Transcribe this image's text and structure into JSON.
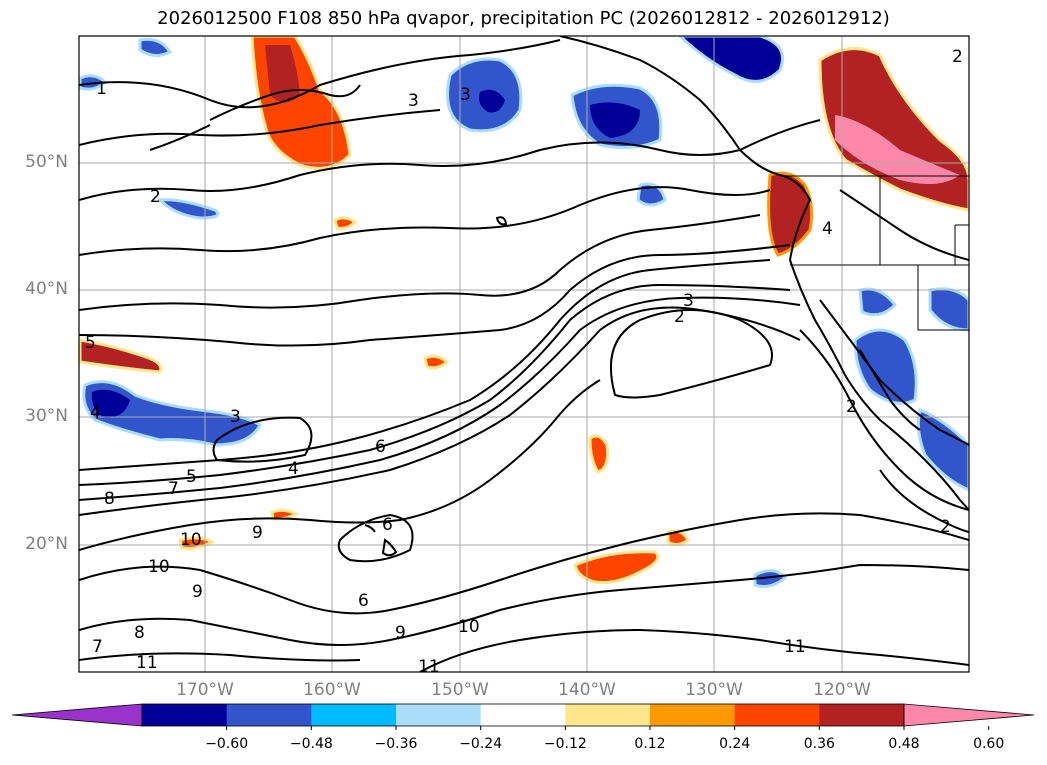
{
  "title": "2026012500 F108 850 hPa qvapor, precipitation PC (2026012812 - 2026012912)",
  "lat_labels": [
    "50°N",
    "40°N",
    "30°N",
    "20°N"
  ],
  "lon_labels": [
    "170°W",
    "160°W",
    "150°W",
    "140°W",
    "130°W",
    "120°W"
  ],
  "contour_labels": [
    "1",
    "2",
    "3",
    "3",
    "5",
    "4",
    "3",
    "6",
    "4",
    "5",
    "7",
    "8",
    "10",
    "10",
    "9",
    "6",
    "9",
    "9",
    "6",
    "8",
    "7",
    "11",
    "10",
    "11",
    "3",
    "2",
    "2",
    "4",
    "2",
    "2",
    "11"
  ],
  "colorbar": {
    "ticks": [
      "−0.60",
      "−0.48",
      "−0.36",
      "−0.24",
      "−0.12",
      "0.12",
      "0.24",
      "0.36",
      "0.48",
      "0.60"
    ],
    "colors": [
      "#9933cc",
      "#000099",
      "#3355cc",
      "#00bbff",
      "#aaddf8",
      "#ffffff",
      "#ffe68c",
      "#ff9900",
      "#ff4400",
      "#b22222",
      "#ff88aa"
    ]
  }
}
